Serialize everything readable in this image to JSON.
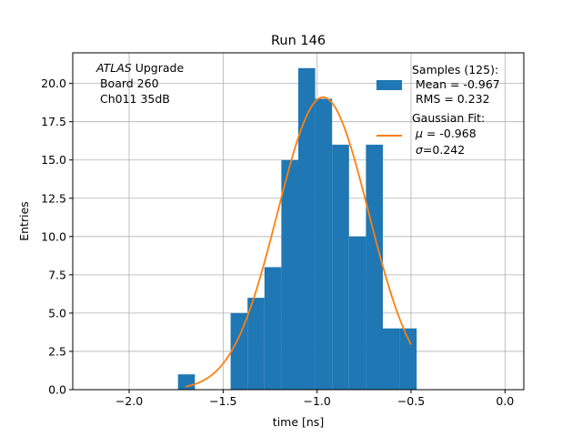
{
  "chart_data": {
    "type": "bar",
    "title": "Run 146",
    "xlabel": "time [ns]",
    "ylabel": "Entries",
    "xlim": [
      -2.3,
      0.1
    ],
    "ylim": [
      0,
      22
    ],
    "xticks": [
      -2.0,
      -1.5,
      -1.0,
      -0.5,
      0.0
    ],
    "xtick_labels": [
      "−2.0",
      "−1.5",
      "−1.0",
      "−0.5",
      "0.0"
    ],
    "yticks": [
      0.0,
      2.5,
      5.0,
      7.5,
      10.0,
      12.5,
      15.0,
      17.5,
      20.0
    ],
    "ytick_labels": [
      "0.0",
      "2.5",
      "5.0",
      "7.5",
      "10.0",
      "12.5",
      "15.0",
      "17.5",
      "20.0"
    ],
    "grid": true,
    "legend_position": "top-right",
    "annotation": {
      "experiment": "ATLAS",
      "line1_rest": " Upgrade",
      "line2": " Board 260",
      "line3": " Ch011 35dB"
    },
    "histogram": {
      "name": "Samples (125):",
      "stats": [
        " Mean = -0.967",
        " RMS = 0.232"
      ],
      "color": "#1f77b4",
      "bins": [
        {
          "x0": -1.74,
          "x1": -1.65,
          "count": 1
        },
        {
          "x0": -1.65,
          "x1": -1.46,
          "count": 0
        },
        {
          "x0": -1.46,
          "x1": -1.37,
          "count": 5
        },
        {
          "x0": -1.37,
          "x1": -1.28,
          "count": 6
        },
        {
          "x0": -1.28,
          "x1": -1.19,
          "count": 8
        },
        {
          "x0": -1.19,
          "x1": -1.1,
          "count": 15
        },
        {
          "x0": -1.1,
          "x1": -1.01,
          "count": 21
        },
        {
          "x0": -1.01,
          "x1": -0.92,
          "count": 19
        },
        {
          "x0": -0.92,
          "x1": -0.83,
          "count": 16
        },
        {
          "x0": -0.83,
          "x1": -0.74,
          "count": 10
        },
        {
          "x0": -0.74,
          "x1": -0.65,
          "count": 16
        },
        {
          "x0": -0.65,
          "x1": -0.56,
          "count": 4
        },
        {
          "x0": -0.56,
          "x1": -0.47,
          "count": 4
        }
      ]
    },
    "fit": {
      "name": "Gaussian Fit:",
      "mu_symbol": "μ",
      "mu_text": " = -0.968",
      "sigma_symbol": "σ",
      "sigma_text": "=0.242",
      "mu": -0.968,
      "sigma": 0.242,
      "amplitude": 19.1,
      "x_range": [
        -1.7,
        -0.5
      ],
      "color": "#ff7f0e"
    }
  }
}
